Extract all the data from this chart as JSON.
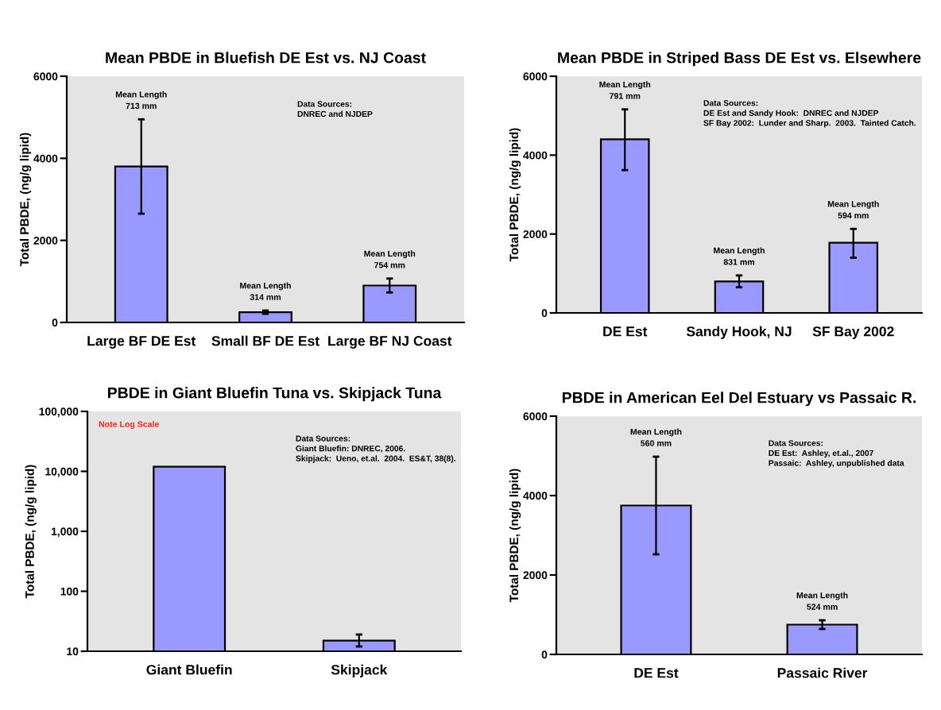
{
  "chart_data": [
    {
      "type": "bar",
      "title": "Mean PBDE in Bluefish DE Est vs. NJ Coast",
      "ylabel": "Total PBDE, (ng/g lipid)",
      "categories": [
        "Large BF DE Est",
        "Small BF DE Est",
        "Large BF NJ Coast"
      ],
      "values": [
        3800,
        250,
        900
      ],
      "errors": [
        [
          2650,
          4950
        ],
        [
          210,
          290
        ],
        [
          730,
          1070
        ]
      ],
      "color": "#9999ff",
      "ylim": [
        0,
        6000
      ],
      "yticks": [
        0,
        2000,
        4000,
        6000
      ],
      "grid": false,
      "legend": false,
      "annotations": [
        {
          "text": "Mean Length\n713 mm",
          "x": "Large BF DE Est",
          "y": 4950
        },
        {
          "text": "Mean Length\n314 mm",
          "x": "Small BF DE Est",
          "y": 290
        },
        {
          "text": "Mean Length\n754 mm",
          "x": "Large BF NJ Coast",
          "y": 1070
        },
        "Data Sources:\nDNREC and NJDEP"
      ]
    },
    {
      "type": "bar",
      "title": "Mean PBDE in Striped Bass DE Est vs. Elsewhere",
      "ylabel": "Total PBDE, (ng/g lipid)",
      "categories": [
        "DE Est",
        "Sandy Hook, NJ",
        "SF Bay 2002"
      ],
      "values": [
        4400,
        800,
        1780
      ],
      "errors": [
        [
          3620,
          5160
        ],
        [
          650,
          950
        ],
        [
          1400,
          2130
        ]
      ],
      "color": "#9999ff",
      "ylim": [
        0,
        6000
      ],
      "yticks": [
        0,
        2000,
        4000,
        6000
      ],
      "grid": false,
      "legend": false,
      "annotations": [
        {
          "text": "Mean Length\n791 mm",
          "x": "DE Est",
          "y": 5160
        },
        {
          "text": "Mean Length\n831 mm",
          "x": "Sandy Hook, NJ",
          "y": 950
        },
        {
          "text": "Mean Length\n594 mm",
          "x": "SF Bay 2002",
          "y": 2130
        },
        "Data Sources:\nDE Est and Sandy Hook:  DNREC and NJDEP\nSF Bay 2002:  Lunder and Sharp.  2003.  Tainted Catch."
      ]
    },
    {
      "type": "bar",
      "title": "PBDE in Giant Bluefin Tuna vs. Skipjack Tuna",
      "ylabel": "Total PBDE, (ng/g lipid)",
      "categories": [
        "Giant Bluefin",
        "Skipjack"
      ],
      "values": [
        12000,
        15
      ],
      "errors": [
        null,
        [
          12,
          19
        ]
      ],
      "color": "#9999ff",
      "log": true,
      "ylim": [
        10,
        100000
      ],
      "yticks": [
        10,
        100,
        {
          "value": 1000,
          "label": "1,000"
        },
        {
          "value": 10000,
          "label": "10,000"
        },
        {
          "value": 100000,
          "label": "100,000"
        }
      ],
      "grid": false,
      "legend": false,
      "annotations": [
        "Data Sources:\nGiant Bluefin: DNREC, 2006.\nSkipjack:  Ueno, et.al.  2004.  ES&T, 38(8).",
        "Note Log Scale"
      ]
    },
    {
      "type": "bar",
      "title": "PBDE in American Eel Del Estuary vs Passaic R.",
      "ylabel": "Total PBDE, (ng/g lipid)",
      "categories": [
        "DE Est",
        "Passaic River"
      ],
      "values": [
        3750,
        750
      ],
      "errors": [
        [
          2520,
          4980
        ],
        [
          640,
          860
        ]
      ],
      "color": "#9999ff",
      "ylim": [
        0,
        6000
      ],
      "yticks": [
        0,
        2000,
        4000,
        6000
      ],
      "grid": false,
      "legend": false,
      "annotations": [
        {
          "text": "Mean Length\n560 mm",
          "x": "DE Est",
          "y": 4980
        },
        {
          "text": "Mean Length\n524 mm",
          "x": "Passaic River",
          "y": 860
        },
        "Data Sources:\nDE Est:  Ashley, et.al., 2007\nPassaic:  Ashley, unpublished data"
      ]
    }
  ]
}
